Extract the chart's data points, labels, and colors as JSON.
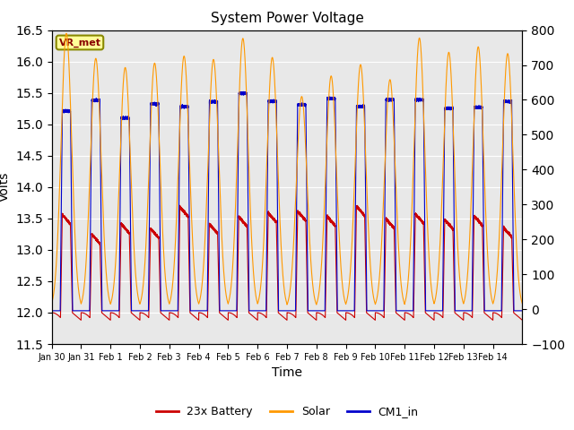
{
  "title": "System Power Voltage",
  "xlabel": "Time",
  "ylabel": "Volts",
  "ylim_left": [
    11.5,
    16.5
  ],
  "ylim_right": [
    -100,
    800
  ],
  "yticks_left": [
    11.5,
    12.0,
    12.5,
    13.0,
    13.5,
    14.0,
    14.5,
    15.0,
    15.5,
    16.0,
    16.5
  ],
  "yticks_right": [
    -100,
    0,
    100,
    200,
    300,
    400,
    500,
    600,
    700,
    800
  ],
  "xtick_labels": [
    "Jan 30",
    "Jan 31",
    "Feb 1",
    "Feb 2",
    "Feb 3",
    "Feb 4",
    "Feb 5",
    "Feb 6",
    "Feb 7",
    "Feb 8",
    "Feb 9",
    "Feb 10",
    "Feb 11",
    "Feb 12",
    "Feb 13",
    "Feb 14"
  ],
  "n_days": 16,
  "bg_color": "#e8e8e8",
  "line_colors": {
    "battery": "#cc0000",
    "solar": "#ff9900",
    "cm1": "#0000cc"
  },
  "legend_labels": [
    "23x Battery",
    "Solar",
    "CM1_in"
  ],
  "annotation_text": "VR_met",
  "annotation_color": "#880000",
  "annotation_bg": "#ffff99",
  "annotation_border": "#888800"
}
